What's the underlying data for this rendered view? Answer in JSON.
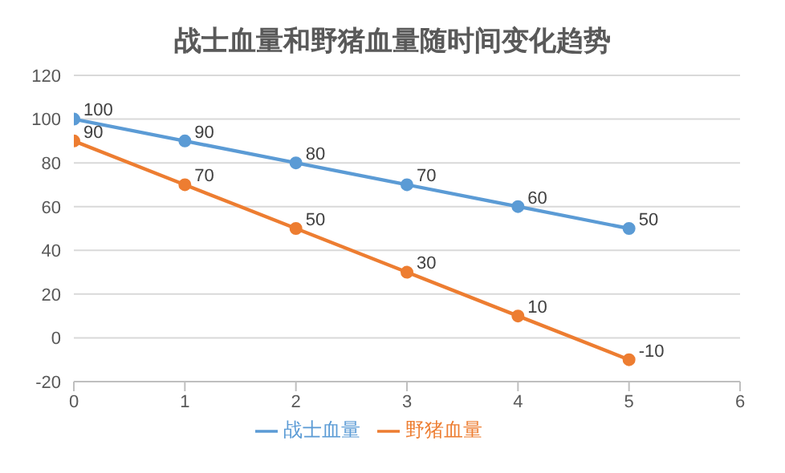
{
  "chart_data": {
    "type": "line",
    "title": "战士血量和野猪血量随时间变化趋势",
    "x": [
      0,
      1,
      2,
      3,
      4,
      5
    ],
    "series": [
      {
        "name": "战士血量",
        "color": "#5b9bd5",
        "values": [
          100,
          90,
          80,
          70,
          60,
          50
        ]
      },
      {
        "name": "野猪血量",
        "color": "#ed7d31",
        "values": [
          90,
          70,
          50,
          30,
          10,
          -10
        ]
      }
    ],
    "xlim": [
      0,
      6
    ],
    "xticks": [
      0,
      1,
      2,
      3,
      4,
      5,
      6
    ],
    "ylim": [
      -20,
      120
    ],
    "yticks": [
      -20,
      0,
      20,
      40,
      60,
      80,
      100,
      120
    ],
    "grid": "y",
    "legend": "bottom",
    "marker": "circle",
    "line_style": "solid",
    "data_labels": true
  }
}
